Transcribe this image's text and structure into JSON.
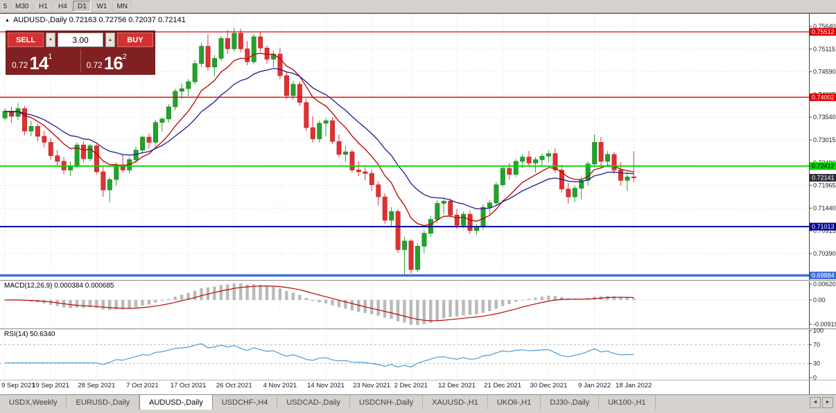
{
  "toolbar": {
    "timeframes": [
      "5",
      "M30",
      "H1",
      "H4",
      "D1",
      "W1",
      "MN"
    ],
    "active": "D1"
  },
  "chart_header": {
    "collapse_icon": "▲",
    "title": "AUDUSD-,Daily 0.72163 0.72756 0.72037 0.72141"
  },
  "trade_panel": {
    "sell_label": "SELL",
    "buy_label": "BUY",
    "volume": "3.00",
    "spinner_down": "▼",
    "spinner_up": "▲",
    "bid_prefix": "0.72",
    "bid_main": "14",
    "bid_sup": "1",
    "ask_prefix": "0.72",
    "ask_main": "16",
    "ask_sup": "2"
  },
  "price_axis": {
    "ticks": [
      "0.75640",
      "0.75115",
      "0.74590",
      "0.74065",
      "0.73540",
      "0.73015",
      "0.72490",
      "0.71965",
      "0.71440",
      "0.70915",
      "0.70390"
    ],
    "levels": [
      {
        "label": "0.75512",
        "value": 0.75512,
        "color": "#dd0000",
        "text": "#ffffff",
        "width": 1.3
      },
      {
        "label": "0.74002",
        "value": 0.74002,
        "color": "#dd0000",
        "text": "#ffffff",
        "width": 1.3
      },
      {
        "label": "0.72412",
        "value": 0.72412,
        "color": "#00d800",
        "text": "#000000",
        "width": 2
      },
      {
        "label": "0.71013",
        "value": 0.71013,
        "color": "#000096",
        "text": "#ffffff",
        "width": 2
      },
      {
        "label": "0.69884",
        "value": 0.69884,
        "color": "#3f6fd8",
        "text": "#ffffff",
        "width": 3.5
      }
    ],
    "current": {
      "label": "0.72141",
      "value": 0.72141,
      "color": "#2d2d3a",
      "text": "#ffffff"
    }
  },
  "indicator_panels": {
    "macd_label": "MACD(12,26,9) 0.000384 0.000685",
    "macd_axis": [
      "0.006201",
      "0.00",
      "-0.00919"
    ],
    "rsi_label": "RSI(14) 50.6340",
    "rsi_axis": [
      "100",
      "70",
      "30",
      "0"
    ]
  },
  "tabs": {
    "items": [
      "USDX,Weekly",
      "EURUSD-,Daily",
      "AUDUSD-,Daily",
      "USDCHF-,H4",
      "USDCAD-,Daily",
      "USDCNH-,Daily",
      "XAUUSD-,H1",
      "UKOil-,H1",
      "DJ30-,Daily",
      "UK100-,H1"
    ],
    "active": "AUDUSD-,Daily",
    "scroll_left": "◄",
    "scroll_right": "►"
  },
  "chart_data": {
    "type": "candlestick",
    "symbol": "AUDUSD-",
    "timeframe": "Daily",
    "title": "AUDUSD-,Daily",
    "ohlc_last": {
      "open": 0.72163,
      "high": 0.72756,
      "low": 0.72037,
      "close": 0.72141
    },
    "y_axis": {
      "min": 0.6985,
      "max": 0.7577
    },
    "levels": [
      0.75512,
      0.74002,
      0.72412,
      0.71013,
      0.69884
    ],
    "overlays": [
      {
        "name": "ma-fast",
        "color": "#b40000",
        "period": 9
      },
      {
        "name": "ma-slow",
        "color": "#1a1a8c",
        "period": 18
      }
    ],
    "indicators": [
      {
        "name": "MACD",
        "params": [
          12,
          26,
          9
        ],
        "values": [
          0.000384,
          0.000685
        ],
        "axis": [
          0.006201,
          0,
          -0.00919
        ]
      },
      {
        "name": "RSI",
        "params": [
          14
        ],
        "value": 50.634,
        "levels": [
          70,
          30
        ],
        "axis": [
          100,
          70,
          30,
          0
        ]
      }
    ],
    "date_ticks": {
      "indices": [
        0,
        7,
        14,
        21,
        28,
        35,
        42,
        49,
        56,
        62,
        69,
        76,
        83,
        90,
        96
      ],
      "labels": [
        "9 Sep 2021",
        "19 Sep 2021",
        "28 Sep 2021",
        "7 Oct 2021",
        "17 Oct 2021",
        "26 Oct 2021",
        "4 Nov 2021",
        "14 Nov 2021",
        "23 Nov 2021",
        "2 Dec 2021",
        "12 Dec 2021",
        "21 Dec 2021",
        "30 Dec 2021",
        "9 Jan 2022",
        "18 Jan 2022"
      ]
    },
    "candles": [
      [
        0.7352,
        0.7375,
        0.7346,
        0.7368
      ],
      [
        0.7368,
        0.7379,
        0.7341,
        0.7356
      ],
      [
        0.7356,
        0.7387,
        0.7348,
        0.7374
      ],
      [
        0.7374,
        0.738,
        0.7312,
        0.7322
      ],
      [
        0.7322,
        0.7346,
        0.731,
        0.7333
      ],
      [
        0.7333,
        0.734,
        0.7298,
        0.731
      ],
      [
        0.731,
        0.7322,
        0.7284,
        0.7296
      ],
      [
        0.7296,
        0.7306,
        0.7256,
        0.7265
      ],
      [
        0.7265,
        0.7278,
        0.7242,
        0.7252
      ],
      [
        0.7252,
        0.7262,
        0.7222,
        0.7232
      ],
      [
        0.7232,
        0.7252,
        0.7218,
        0.724
      ],
      [
        0.724,
        0.7296,
        0.7236,
        0.729
      ],
      [
        0.729,
        0.7298,
        0.725,
        0.7258
      ],
      [
        0.7258,
        0.7292,
        0.7252,
        0.7288
      ],
      [
        0.7288,
        0.7292,
        0.7222,
        0.7228
      ],
      [
        0.7228,
        0.724,
        0.717,
        0.7186
      ],
      [
        0.7186,
        0.7215,
        0.7158,
        0.721
      ],
      [
        0.721,
        0.725,
        0.7196,
        0.7244
      ],
      [
        0.7244,
        0.7268,
        0.7226,
        0.7232
      ],
      [
        0.7232,
        0.7262,
        0.7224,
        0.7256
      ],
      [
        0.7256,
        0.7286,
        0.7248,
        0.7278
      ],
      [
        0.7278,
        0.7312,
        0.727,
        0.7308
      ],
      [
        0.7308,
        0.7316,
        0.7282,
        0.7296
      ],
      [
        0.7296,
        0.7348,
        0.7288,
        0.7342
      ],
      [
        0.7342,
        0.7354,
        0.732,
        0.735
      ],
      [
        0.735,
        0.7384,
        0.7342,
        0.7378
      ],
      [
        0.7378,
        0.742,
        0.737,
        0.7414
      ],
      [
        0.7414,
        0.7432,
        0.7396,
        0.742
      ],
      [
        0.742,
        0.7442,
        0.7402,
        0.7436
      ],
      [
        0.7436,
        0.7486,
        0.743,
        0.7478
      ],
      [
        0.7478,
        0.7526,
        0.747,
        0.7518
      ],
      [
        0.7518,
        0.7546,
        0.7462,
        0.747
      ],
      [
        0.747,
        0.7498,
        0.7448,
        0.749
      ],
      [
        0.749,
        0.7542,
        0.7484,
        0.7536
      ],
      [
        0.7536,
        0.7555,
        0.75,
        0.7512
      ],
      [
        0.7512,
        0.756,
        0.7506,
        0.7548
      ],
      [
        0.7548,
        0.7558,
        0.7504,
        0.7512
      ],
      [
        0.7512,
        0.753,
        0.7474,
        0.7482
      ],
      [
        0.7482,
        0.7546,
        0.7476,
        0.754
      ],
      [
        0.754,
        0.7552,
        0.7506,
        0.7514
      ],
      [
        0.7514,
        0.752,
        0.7478,
        0.7488
      ],
      [
        0.7488,
        0.7508,
        0.747,
        0.75
      ],
      [
        0.75,
        0.7514,
        0.7442,
        0.745
      ],
      [
        0.745,
        0.746,
        0.7396,
        0.7404
      ],
      [
        0.7404,
        0.7438,
        0.7394,
        0.743
      ],
      [
        0.743,
        0.7436,
        0.738,
        0.7388
      ],
      [
        0.7388,
        0.7398,
        0.7322,
        0.733
      ],
      [
        0.733,
        0.7356,
        0.7296,
        0.7304
      ],
      [
        0.7304,
        0.7346,
        0.7296,
        0.734
      ],
      [
        0.734,
        0.7352,
        0.731,
        0.7346
      ],
      [
        0.7346,
        0.7354,
        0.7292,
        0.7298
      ],
      [
        0.7298,
        0.7314,
        0.7262,
        0.7268
      ],
      [
        0.7268,
        0.7288,
        0.725,
        0.7274
      ],
      [
        0.7274,
        0.728,
        0.7226,
        0.7232
      ],
      [
        0.7232,
        0.7252,
        0.7218,
        0.7228
      ],
      [
        0.7228,
        0.7238,
        0.7208,
        0.7224
      ],
      [
        0.7224,
        0.7232,
        0.7184,
        0.7198
      ],
      [
        0.7198,
        0.7206,
        0.715,
        0.717
      ],
      [
        0.717,
        0.7178,
        0.7108,
        0.7116
      ],
      [
        0.7116,
        0.7146,
        0.7102,
        0.7136
      ],
      [
        0.7136,
        0.7142,
        0.704,
        0.7048
      ],
      [
        0.7048,
        0.7078,
        0.699,
        0.7068
      ],
      [
        0.7068,
        0.7072,
        0.6993,
        0.7002
      ],
      [
        0.7002,
        0.7062,
        0.6996,
        0.7056
      ],
      [
        0.7056,
        0.7092,
        0.704,
        0.7086
      ],
      [
        0.7086,
        0.7126,
        0.7078,
        0.7118
      ],
      [
        0.7118,
        0.7162,
        0.711,
        0.7155
      ],
      [
        0.7155,
        0.7168,
        0.713,
        0.716
      ],
      [
        0.716,
        0.7166,
        0.7122,
        0.7128
      ],
      [
        0.7128,
        0.7142,
        0.7096,
        0.7104
      ],
      [
        0.7104,
        0.7136,
        0.7098,
        0.713
      ],
      [
        0.713,
        0.7138,
        0.7084,
        0.7092
      ],
      [
        0.7092,
        0.7108,
        0.7082,
        0.71
      ],
      [
        0.71,
        0.7152,
        0.7094,
        0.7146
      ],
      [
        0.7146,
        0.7162,
        0.713,
        0.7156
      ],
      [
        0.7156,
        0.7204,
        0.715,
        0.7198
      ],
      [
        0.7198,
        0.7242,
        0.7192,
        0.7236
      ],
      [
        0.7236,
        0.7248,
        0.721,
        0.7222
      ],
      [
        0.7222,
        0.7258,
        0.7216,
        0.7252
      ],
      [
        0.7252,
        0.7268,
        0.7236,
        0.7262
      ],
      [
        0.7262,
        0.7276,
        0.7242,
        0.7248
      ],
      [
        0.7248,
        0.7262,
        0.7226,
        0.7256
      ],
      [
        0.7256,
        0.727,
        0.724,
        0.7264
      ],
      [
        0.7264,
        0.7278,
        0.725,
        0.727
      ],
      [
        0.727,
        0.7282,
        0.7226,
        0.7232
      ],
      [
        0.7232,
        0.7244,
        0.718,
        0.7188
      ],
      [
        0.7188,
        0.7202,
        0.7154,
        0.717
      ],
      [
        0.717,
        0.7196,
        0.7158,
        0.719
      ],
      [
        0.719,
        0.7216,
        0.7164,
        0.7208
      ],
      [
        0.7208,
        0.7252,
        0.7196,
        0.7246
      ],
      [
        0.7246,
        0.7314,
        0.724,
        0.7296
      ],
      [
        0.7296,
        0.7308,
        0.7238,
        0.7252
      ],
      [
        0.7252,
        0.7276,
        0.724,
        0.7268
      ],
      [
        0.7268,
        0.7274,
        0.7222,
        0.7232
      ],
      [
        0.7232,
        0.725,
        0.7196,
        0.7208
      ],
      [
        0.7208,
        0.7228,
        0.7184,
        0.7216
      ],
      [
        0.72163,
        0.72756,
        0.72037,
        0.72141
      ]
    ]
  }
}
